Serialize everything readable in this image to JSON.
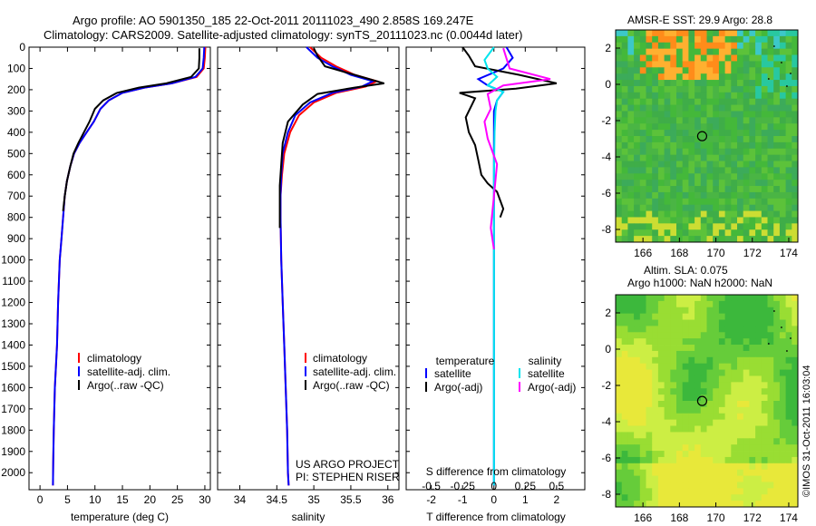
{
  "header": {
    "line1": "Argo profile: AO 5901350_185 22-Oct-2011 20111023_490 2.858S 169.247E",
    "line2": "Climatology: CARS2009. Satellite-adjusted climatology: synTS_20111023.nc (0.0044d later)"
  },
  "colors": {
    "climatology": "#ff0000",
    "satellite": "#0000ff",
    "argo": "#000000",
    "satellite_s": "#00e5ee",
    "argo_s": "#ff00ff"
  },
  "notes": {
    "project": "US ARGO PROJECT",
    "pi": "PI: STEPHEN RISER"
  },
  "map_titles": {
    "sst": "AMSR-E SST: 29.9 Argo: 28.8",
    "sla1": "Altim. SLA: 0.075",
    "sla2": "Argo h1000: NaN h2000: NaN"
  },
  "stamp": "©IMOS 31-Oct-2011 16:03:04",
  "chart_data": [
    {
      "type": "line",
      "panel": "temperature",
      "xlabel": "temperature (deg C)",
      "ylabel": "",
      "xlim": [
        -2,
        31
      ],
      "ylim": [
        2080,
        0
      ],
      "xticks": [
        0,
        5,
        10,
        15,
        20,
        25,
        30
      ],
      "yticks": [
        0,
        100,
        200,
        300,
        400,
        500,
        600,
        700,
        800,
        900,
        1000,
        1100,
        1200,
        1300,
        1400,
        1500,
        1600,
        1700,
        1800,
        1900,
        2000
      ],
      "legend": [
        "climatology",
        "satellite-adj. clim.",
        "Argo(..raw -QC)"
      ],
      "series": [
        {
          "name": "climatology",
          "color": "#ff0000",
          "x": [
            30.1,
            30.0,
            29.8,
            28.5,
            24,
            19,
            15,
            12.5,
            11,
            9.8,
            8.5,
            7.2,
            6.2,
            5.5,
            4.9,
            4.5,
            4.2,
            3.9,
            3.6,
            3.3,
            3.1,
            2.9,
            2.7,
            2.6,
            2.5,
            2.4,
            2.35
          ],
          "y": [
            0,
            50,
            100,
            140,
            170,
            190,
            215,
            250,
            290,
            350,
            400,
            450,
            500,
            560,
            630,
            700,
            800,
            900,
            1000,
            1200,
            1400,
            1500,
            1600,
            1700,
            1800,
            1950,
            2060
          ]
        },
        {
          "name": "satellite-adj. clim.",
          "color": "#0000ff",
          "x": [
            29.9,
            29.8,
            29.6,
            28.3,
            24,
            19,
            15,
            12.5,
            11,
            9.8,
            8.5,
            7.2,
            6.2,
            5.5,
            4.9,
            4.5,
            4.2,
            3.9,
            3.6,
            3.3,
            3.1,
            2.9,
            2.7,
            2.6,
            2.5,
            2.4,
            2.35
          ],
          "y": [
            0,
            50,
            100,
            140,
            170,
            190,
            215,
            250,
            290,
            350,
            400,
            450,
            500,
            560,
            630,
            700,
            800,
            900,
            1000,
            1200,
            1400,
            1500,
            1600,
            1700,
            1800,
            1950,
            2060
          ]
        },
        {
          "name": "Argo(..raw -QC)",
          "color": "#000000",
          "x": [
            29.0,
            29.0,
            28.9,
            27.5,
            23,
            18,
            14,
            11.5,
            10,
            9,
            8,
            7,
            6.1,
            5.5,
            4.9,
            4.5,
            4.2
          ],
          "y": [
            5,
            50,
            100,
            140,
            170,
            190,
            215,
            250,
            290,
            350,
            400,
            450,
            500,
            560,
            630,
            700,
            770
          ]
        }
      ]
    },
    {
      "type": "line",
      "panel": "salinity",
      "xlabel": "salinity",
      "ylabel": "",
      "xlim": [
        33.7,
        36.15
      ],
      "ylim": [
        2080,
        0
      ],
      "xticks": [
        34,
        34.5,
        35,
        35.5,
        36
      ],
      "legend": [
        "climatology",
        "satellite-adj. clim.",
        "Argo(..raw -QC)"
      ],
      "series": [
        {
          "name": "climatology",
          "color": "#ff0000",
          "x": [
            34.95,
            35.1,
            35.3,
            35.55,
            35.85,
            35.7,
            35.3,
            35.0,
            34.8,
            34.68,
            34.6,
            34.57,
            34.55,
            34.55,
            34.56,
            34.58,
            34.6,
            34.62,
            34.64,
            34.65,
            34.66
          ],
          "y": [
            0,
            50,
            90,
            130,
            160,
            185,
            215,
            260,
            320,
            400,
            500,
            600,
            700,
            800,
            1000,
            1200,
            1400,
            1600,
            1800,
            2000,
            2060
          ]
        },
        {
          "name": "satellite-adj. clim.",
          "color": "#0000ff",
          "x": [
            34.9,
            35.05,
            35.25,
            35.5,
            35.8,
            35.65,
            35.25,
            34.95,
            34.75,
            34.65,
            34.58,
            34.56,
            34.55,
            34.55,
            34.56,
            34.58,
            34.6,
            34.62,
            34.64,
            34.65,
            34.66
          ],
          "y": [
            0,
            50,
            90,
            130,
            160,
            185,
            215,
            260,
            320,
            400,
            500,
            600,
            700,
            800,
            1000,
            1200,
            1400,
            1600,
            1800,
            2000,
            2060
          ]
        },
        {
          "name": "Argo(..raw -QC)",
          "color": "#000000",
          "x": [
            35.0,
            35.05,
            35.15,
            35.55,
            35.95,
            35.55,
            35.05,
            34.85,
            34.65,
            34.58,
            34.56,
            34.54,
            34.54,
            34.54
          ],
          "y": [
            5,
            40,
            90,
            130,
            170,
            190,
            220,
            270,
            350,
            450,
            550,
            650,
            750,
            850
          ]
        }
      ]
    },
    {
      "type": "line",
      "panel": "difference",
      "xlabel": "T difference from climatology",
      "x2label": "S difference from climatology",
      "xlim": [
        -2.8,
        2.9
      ],
      "ylim": [
        2080,
        0
      ],
      "xticks": [
        -2,
        -1,
        0,
        1,
        2
      ],
      "x2ticks": [
        -0.5,
        -0.25,
        0,
        0.25,
        0.5
      ],
      "legend_headers": [
        "temperature",
        "salinity"
      ],
      "legend": [
        "satellite",
        "Argo(-adj)",
        "satellite",
        "Argo(-adj)"
      ],
      "series": [
        {
          "name": "satellite",
          "color": "#0000ff",
          "x": [
            0.4,
            0.6,
            0.3,
            -0.5,
            -0.2,
            0.3,
            0.1,
            0,
            0,
            0,
            0,
            0,
            0,
            0
          ],
          "y": [
            0,
            50,
            100,
            150,
            180,
            210,
            250,
            300,
            400,
            600,
            900,
            1200,
            1600,
            2060
          ]
        },
        {
          "name": "Argo(-adj)",
          "color": "#000000",
          "x": [
            -1.0,
            -0.8,
            -0.6,
            0.8,
            2.0,
            0.7,
            -1.1,
            -0.6,
            -0.7,
            -0.9,
            -0.8,
            -0.6,
            -0.5,
            -0.4,
            -0.2,
            0.1,
            0.3,
            0.2
          ],
          "y": [
            0,
            40,
            90,
            130,
            170,
            195,
            215,
            240,
            270,
            330,
            400,
            460,
            530,
            600,
            640,
            680,
            760,
            800
          ]
        },
        {
          "name": "satellite",
          "color": "#00e5ee",
          "x": [
            0,
            -0.3,
            -0.2,
            0.1,
            -0.2,
            0.3,
            0.1,
            0.05,
            0.02,
            0,
            0,
            0,
            0
          ],
          "y": [
            0,
            60,
            100,
            140,
            180,
            210,
            250,
            300,
            400,
            600,
            1000,
            1500,
            2060
          ]
        },
        {
          "name": "Argo(-adj)",
          "color": "#ff00ff",
          "x": [
            0.3,
            0.5,
            1.8,
            0.3,
            -0.2,
            -0.1,
            -0.3,
            -0.2,
            0.1,
            0.0,
            -0.1,
            0.0
          ],
          "y": [
            5,
            100,
            150,
            180,
            220,
            290,
            350,
            430,
            550,
            700,
            850,
            950
          ]
        }
      ]
    },
    {
      "type": "heatmap",
      "panel": "sst_map",
      "title": "AMSR-E SST: 29.9 Argo: 28.8",
      "xlim": [
        164.5,
        174.5
      ],
      "ylim": [
        -8.7,
        3
      ],
      "xticks": [
        166,
        168,
        170,
        172,
        174
      ],
      "yticks": [
        2,
        0,
        -2,
        -4,
        -6,
        -8
      ],
      "marker": {
        "lon": 169.247,
        "lat": -2.858
      }
    },
    {
      "type": "heatmap",
      "panel": "sla_map",
      "title": "Altim. SLA: 0.075",
      "subtitle": "Argo h1000: NaN h2000: NaN",
      "xlim": [
        164.5,
        174.5
      ],
      "ylim": [
        -8.7,
        3
      ],
      "xticks": [
        166,
        168,
        170,
        172,
        174
      ],
      "yticks": [
        2,
        0,
        -2,
        -4,
        -6,
        -8
      ],
      "marker": {
        "lon": 169.247,
        "lat": -2.858
      }
    }
  ]
}
